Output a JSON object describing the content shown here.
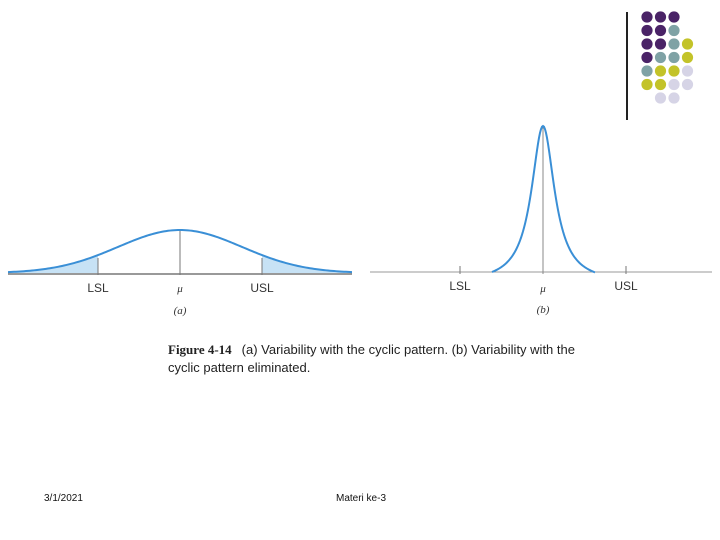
{
  "decor": {
    "colors": {
      "purple": "#4a2367",
      "teal": "#7fa2a5",
      "olive": "#c3c329",
      "lavender": "#d6d4e6"
    },
    "dot_rows": [
      [
        "purple",
        "purple",
        "purple"
      ],
      [
        "purple",
        "purple",
        "teal"
      ],
      [
        "purple",
        "purple",
        "teal",
        "olive"
      ],
      [
        "purple",
        "teal",
        "teal",
        "olive"
      ],
      [
        "teal",
        "olive",
        "olive",
        "lavender"
      ],
      [
        "olive",
        "olive",
        "lavender",
        "lavender"
      ],
      [
        "lavender",
        "lavender"
      ]
    ]
  },
  "figure": {
    "curve_color": "#3a8fd6",
    "tail_fill": "#c7e2f5",
    "panel_a": {
      "lsl_label": "LSL",
      "mu_label": "μ",
      "usl_label": "USL",
      "sub_label": "(a)"
    },
    "panel_b": {
      "lsl_label": "LSL",
      "mu_label": "μ",
      "usl_label": "USL",
      "sub_label": "(b)"
    },
    "caption": {
      "figure_number": "Figure 4-14",
      "text": "(a) Variability with the cyclic pattern. (b) Variability with the cyclic pattern eliminated."
    }
  },
  "footer": {
    "date": "3/1/2021",
    "title": "Materi ke-3"
  }
}
